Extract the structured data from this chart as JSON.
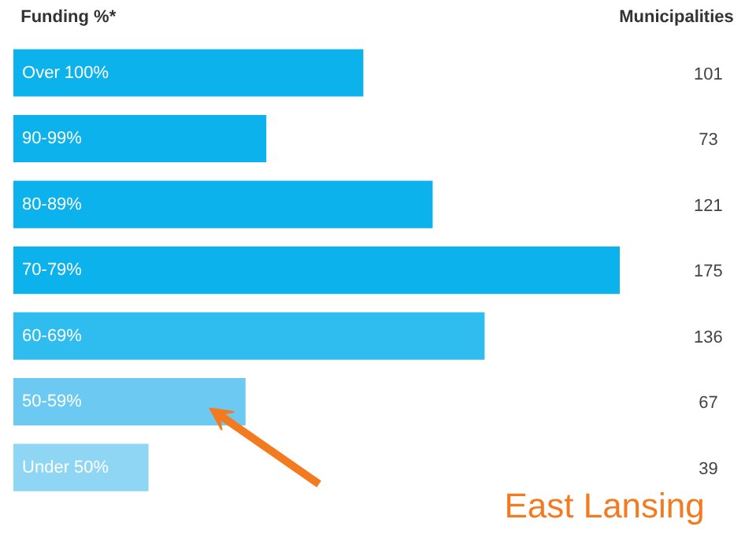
{
  "chart_data": {
    "type": "bar",
    "orientation": "horizontal",
    "ylabel": "Funding %*",
    "categories": [
      "Over 100%",
      "90-99%",
      "80-89%",
      "70-79%",
      "60-69%",
      "50-59%",
      "Under 50%"
    ],
    "values": [
      101,
      73,
      121,
      175,
      136,
      67,
      39
    ],
    "colors": [
      "#0bb2ec",
      "#0bb2ec",
      "#0bb2ec",
      "#0bb2ec",
      "#2fbdf0",
      "#6ccaf2",
      "#8fd6f5"
    ],
    "data_labels": true,
    "tick_labels": false,
    "grid": false,
    "annotations": [
      "Municipalities",
      "East Lansing"
    ]
  }
}
